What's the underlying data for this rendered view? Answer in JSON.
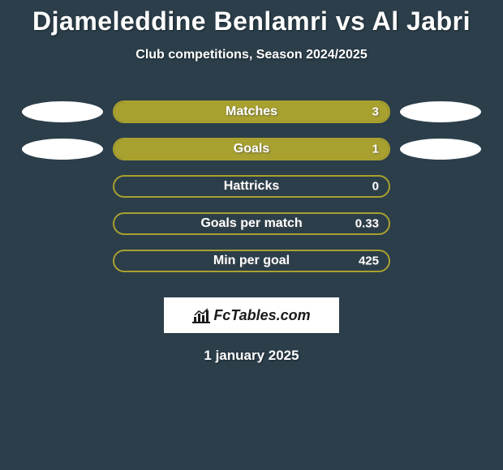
{
  "title": "Djameleddine Benlamri vs Al Jabri",
  "subtitle": "Club competitions, Season 2024/2025",
  "date": "1 january 2025",
  "logo_text": "FcTables.com",
  "background_color": "#2b3e4a",
  "bar_colors": {
    "border": "#a9a12f",
    "fill": "#a9a12f",
    "empty_fill": "#2b3e4a"
  },
  "rows": [
    {
      "label": "Matches",
      "value": "3",
      "fill_pct": 100,
      "left_ellipse": true,
      "right_ellipse": true
    },
    {
      "label": "Goals",
      "value": "1",
      "fill_pct": 100,
      "left_ellipse": true,
      "right_ellipse": true
    },
    {
      "label": "Hattricks",
      "value": "0",
      "fill_pct": 0,
      "left_ellipse": false,
      "right_ellipse": false
    },
    {
      "label": "Goals per match",
      "value": "0.33",
      "fill_pct": 0,
      "left_ellipse": false,
      "right_ellipse": false
    },
    {
      "label": "Min per goal",
      "value": "425",
      "fill_pct": 0,
      "left_ellipse": false,
      "right_ellipse": false
    }
  ],
  "typography": {
    "title_fontsize": 32,
    "subtitle_fontsize": 16,
    "bar_label_fontsize": 16,
    "bar_value_fontsize": 15,
    "date_fontsize": 17
  }
}
